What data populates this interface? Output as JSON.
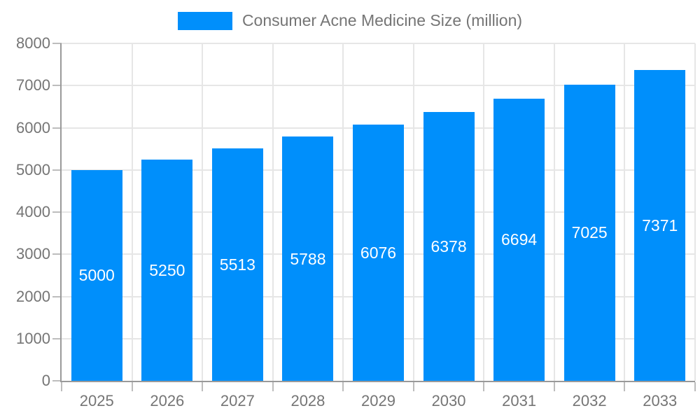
{
  "legend": {
    "label": "Consumer Acne Medicine Size (million)",
    "swatch_color": "#008FFB"
  },
  "chart_data": {
    "type": "bar",
    "title": "Consumer Acne Medicine Size (million)",
    "categories": [
      "2025",
      "2026",
      "2027",
      "2028",
      "2029",
      "2030",
      "2031",
      "2032",
      "2033"
    ],
    "values": [
      5000,
      5250,
      5513,
      5788,
      6076,
      6378,
      6694,
      7025,
      7371
    ],
    "xlabel": "",
    "ylabel": "",
    "ylim": [
      0,
      8000
    ],
    "ytick_step": 1000,
    "ytick_labels": [
      "0",
      "1000",
      "2000",
      "3000",
      "4000",
      "5000",
      "6000",
      "7000",
      "8000"
    ],
    "grid": true,
    "legend_position": "top-center",
    "bar_color": "#008FFB",
    "value_label_position": "inside-center",
    "value_label_color": "#ffffff",
    "axis_color": "#9a9a9a",
    "gridline_color": "#e6e6e6",
    "text_color": "#757575"
  }
}
